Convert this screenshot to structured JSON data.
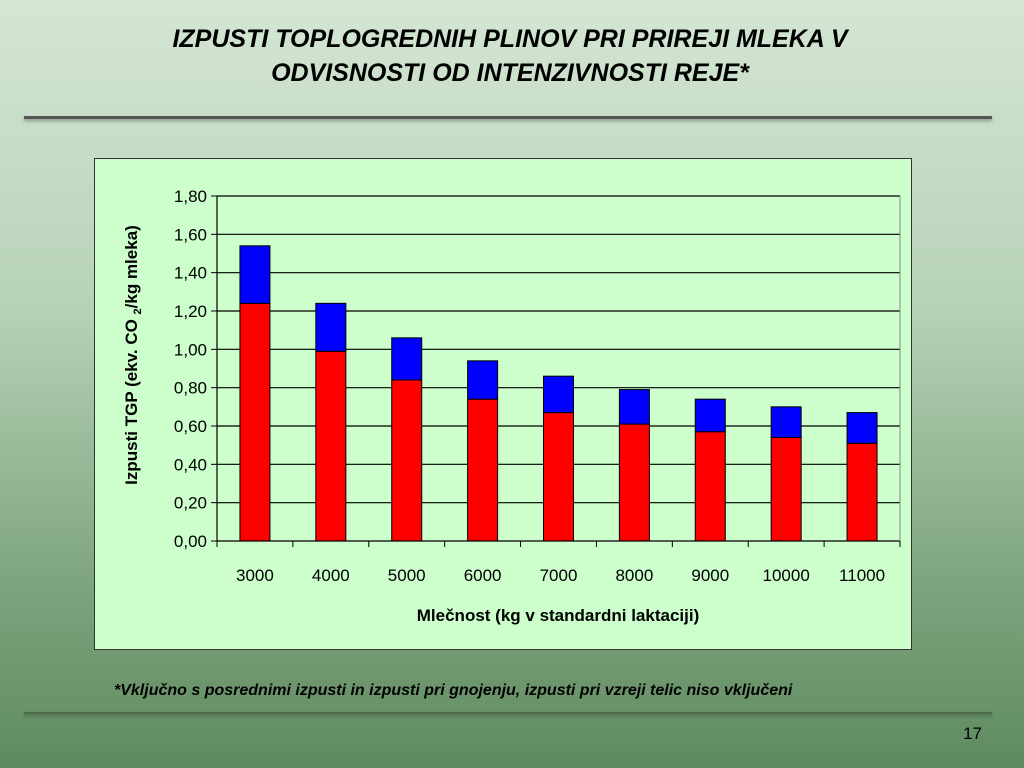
{
  "slide": {
    "title_line1": "IZPUSTI TOPLOGREDNIH PLINOV PRI PRIREJI MLEKA V",
    "title_line2": "ODVISNOSTI OD INTENZIVNOSTI REJE*",
    "footnote": "*Vključno s posrednimi izpusti in izpusti pri gnojenju, izpusti pri vzreji telic niso vključeni",
    "page_number": "17"
  },
  "colors": {
    "bottom_series": "#ff0000",
    "top_series": "#0000ff",
    "plot_background": "#ccffcc",
    "gridline": "#000000"
  },
  "chart_data": {
    "type": "bar",
    "stacked": true,
    "categories": [
      "3000",
      "4000",
      "5000",
      "6000",
      "7000",
      "8000",
      "9000",
      "10000",
      "11000"
    ],
    "series": [
      {
        "values": [
          1.24,
          0.99,
          0.84,
          0.74,
          0.67,
          0.61,
          0.57,
          0.54,
          0.51
        ]
      },
      {
        "values": [
          0.3,
          0.25,
          0.22,
          0.2,
          0.19,
          0.18,
          0.17,
          0.16,
          0.16
        ]
      }
    ],
    "totals": [
      1.54,
      1.24,
      1.06,
      0.94,
      0.86,
      0.79,
      0.74,
      0.7,
      0.67
    ],
    "ylim": [
      0,
      1.8
    ],
    "yticks": [
      "0,00",
      "0,20",
      "0,40",
      "0,60",
      "0,80",
      "1,00",
      "1,20",
      "1,40",
      "1,60",
      "1,80"
    ],
    "ylabel_part1": "Izpusti TGP (ekv. CO ",
    "ylabel_sub": "2",
    "ylabel_part2": "/kg mleka)",
    "xlabel": "Mlečnost (kg v standardni laktaciji)",
    "grid": true,
    "legend": "none"
  }
}
